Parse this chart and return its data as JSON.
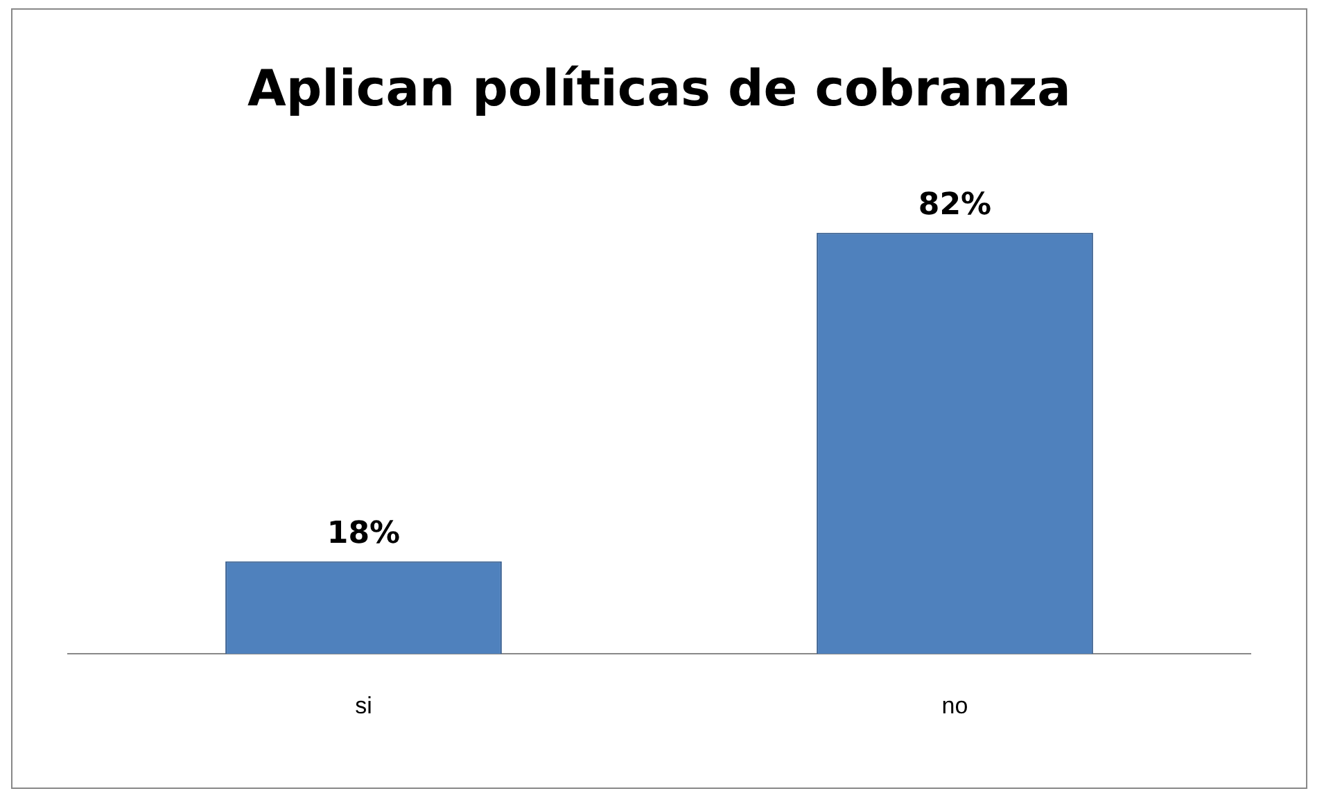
{
  "chart_data": {
    "type": "bar",
    "title": "Aplican políticas de cobranza",
    "categories": [
      "si",
      "no"
    ],
    "values": [
      18,
      82
    ],
    "value_labels": [
      "18%",
      "82%"
    ],
    "color": "#4f81bd",
    "tick_labels": "x",
    "grid": false,
    "legend": false
  }
}
